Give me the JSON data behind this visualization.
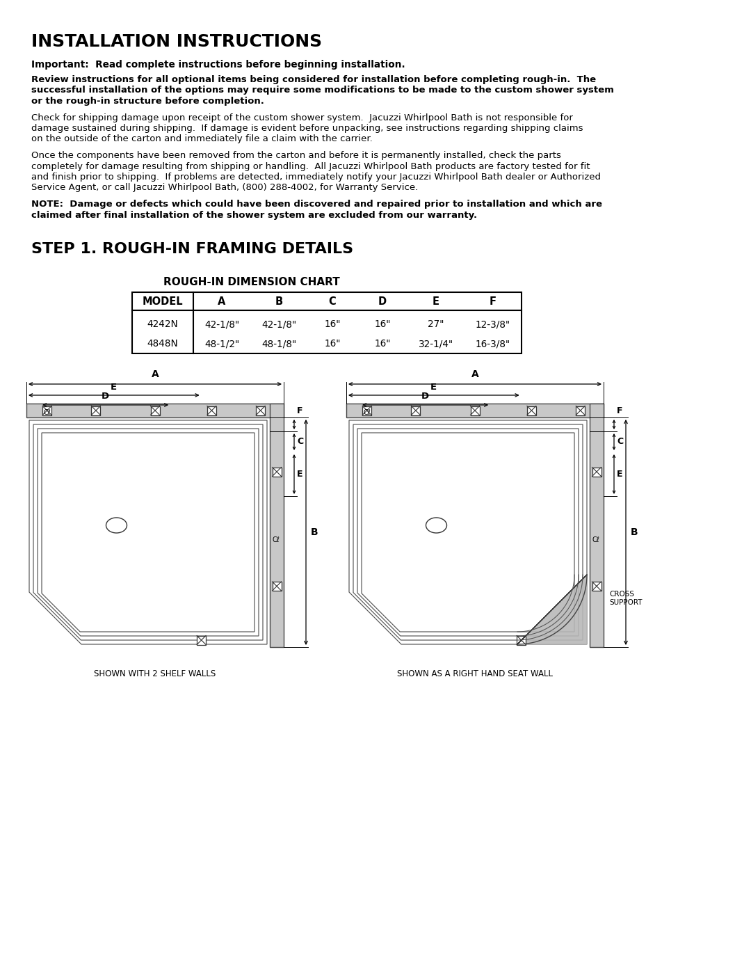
{
  "title": "INSTALLATION INSTRUCTIONS",
  "subtitle1": "Important:  Read complete instructions before beginning installation.",
  "para1_lines": [
    "Review instructions for all optional items being considered for installation before completing rough-in.  The",
    "successful installation of the options may require some modifications to be made to the custom shower system",
    "or the rough-in structure before completion."
  ],
  "para2_lines": [
    "Check for shipping damage upon receipt of the custom shower system.  Jacuzzi Whirlpool Bath is not responsible for",
    "damage sustained during shipping.  If damage is evident before unpacking, see instructions regarding shipping claims",
    "on the outside of the carton and immediately file a claim with the carrier."
  ],
  "para3_lines": [
    "Once the components have been removed from the carton and before it is permanently installed, check the parts",
    "completely for damage resulting from shipping or handling.  All Jacuzzi Whirlpool Bath products are factory tested for fit",
    "and finish prior to shipping.  If problems are detected, immediately notify your Jacuzzi Whirlpool Bath dealer or Authorized",
    "Service Agent, or call Jacuzzi Whirlpool Bath, (800) 288-4002, for Warranty Service."
  ],
  "note_lines": [
    "NOTE:  Damage or defects which could have been discovered and repaired prior to installation and which are",
    "claimed after final installation of the shower system are excluded from our warranty."
  ],
  "step1_title": "STEP 1. ROUGH-IN FRAMING DETAILS",
  "table_title": "ROUGH-IN DIMENSION CHART",
  "table_headers": [
    "MODEL",
    "A",
    "B",
    "C",
    "D",
    "E",
    "F"
  ],
  "table_rows": [
    [
      "4242N",
      "42-1/8\"",
      "42-1/8\"",
      "16\"",
      "16\"",
      "27\"",
      "12-3/8\""
    ],
    [
      "4848N",
      "48-1/2\"",
      "48-1/8\"",
      "16\"",
      "16\"",
      "32-1/4\"",
      "16-3/8\""
    ]
  ],
  "caption_left": "SHOWN WITH 2 SHELF WALLS",
  "caption_right": "SHOWN AS A RIGHT HAND SEAT WALL",
  "bg_color": "#ffffff",
  "text_color": "#000000"
}
